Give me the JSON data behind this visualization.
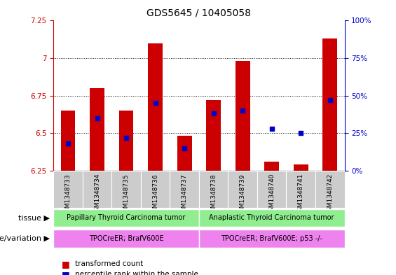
{
  "title": "GDS5645 / 10405058",
  "samples": [
    "GSM1348733",
    "GSM1348734",
    "GSM1348735",
    "GSM1348736",
    "GSM1348737",
    "GSM1348738",
    "GSM1348739",
    "GSM1348740",
    "GSM1348741",
    "GSM1348742"
  ],
  "transformed_count": [
    6.65,
    6.8,
    6.65,
    7.1,
    6.48,
    6.72,
    6.98,
    6.31,
    6.29,
    7.13
  ],
  "percentile_rank": [
    18,
    35,
    22,
    45,
    15,
    38,
    40,
    28,
    25,
    47
  ],
  "ylim_left": [
    6.25,
    7.25
  ],
  "ylim_right": [
    0,
    100
  ],
  "yticks_left": [
    6.25,
    6.5,
    6.75,
    7.0,
    7.25
  ],
  "yticks_right": [
    0,
    25,
    50,
    75,
    100
  ],
  "ytick_left_labels": [
    "6.25",
    "6.5",
    "6.75",
    "7",
    "7.25"
  ],
  "ytick_right_labels": [
    "0%",
    "25%",
    "50%",
    "75%",
    "100%"
  ],
  "bar_color": "#cc0000",
  "dot_color": "#0000cc",
  "bar_base": 6.25,
  "tissue_groups": [
    {
      "label": "Papillary Thyroid Carcinoma tumor",
      "start": 0,
      "end": 5,
      "color": "#90ee90"
    },
    {
      "label": "Anaplastic Thyroid Carcinoma tumor",
      "start": 5,
      "end": 10,
      "color": "#90ee90"
    }
  ],
  "genotype_groups": [
    {
      "label": "TPOCreER; BrafV600E",
      "start": 0,
      "end": 5,
      "color": "#ee82ee"
    },
    {
      "label": "TPOCreER; BrafV600E; p53 -/-",
      "start": 5,
      "end": 10,
      "color": "#ee82ee"
    }
  ],
  "tissue_label": "tissue",
  "genotype_label": "genotype/variation",
  "legend_items": [
    {
      "label": "transformed count",
      "color": "#cc0000"
    },
    {
      "label": "percentile rank within the sample",
      "color": "#0000cc"
    }
  ],
  "title_fontsize": 10,
  "tick_fontsize": 7.5,
  "label_fontsize": 8,
  "sample_fontsize": 6.5,
  "row_fontsize": 7,
  "legend_fontsize": 7.5
}
